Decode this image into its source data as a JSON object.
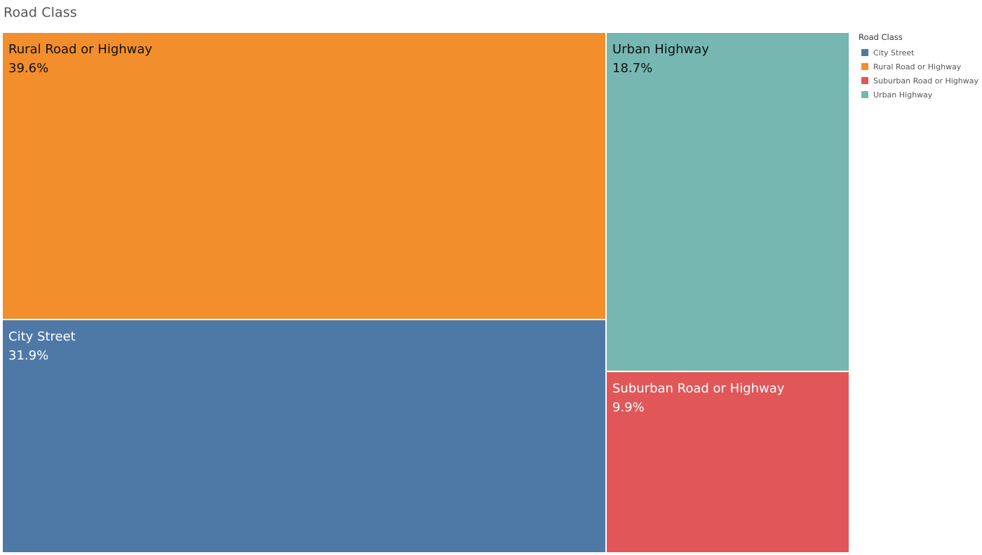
{
  "sheet": {
    "title": "Road Class"
  },
  "legend": {
    "title": "Road Class",
    "items": [
      {
        "label": "City Street",
        "color": "#4e79a7"
      },
      {
        "label": "Rural Road or Highway",
        "color": "#f28e2b"
      },
      {
        "label": "Suburban Road or Highway",
        "color": "#e15759"
      },
      {
        "label": "Urban Highway",
        "color": "#76b7b2"
      }
    ]
  },
  "chart_data": {
    "type": "treemap",
    "title": "Road Class",
    "items": [
      {
        "label": "Rural Road or Highway",
        "value": 39.6,
        "display": "39.6%",
        "color": "#f28e2b",
        "text_color": "#111111"
      },
      {
        "label": "City Street",
        "value": 31.9,
        "display": "31.9%",
        "color": "#4e79a7",
        "text_color": "#ffffff"
      },
      {
        "label": "Urban Highway",
        "value": 18.7,
        "display": "18.7%",
        "color": "#76b7b2",
        "text_color": "#111111"
      },
      {
        "label": "Suburban Road or Highway",
        "value": 9.9,
        "display": "9.9%",
        "color": "#e15759",
        "text_color": "#ffffff"
      }
    ]
  }
}
